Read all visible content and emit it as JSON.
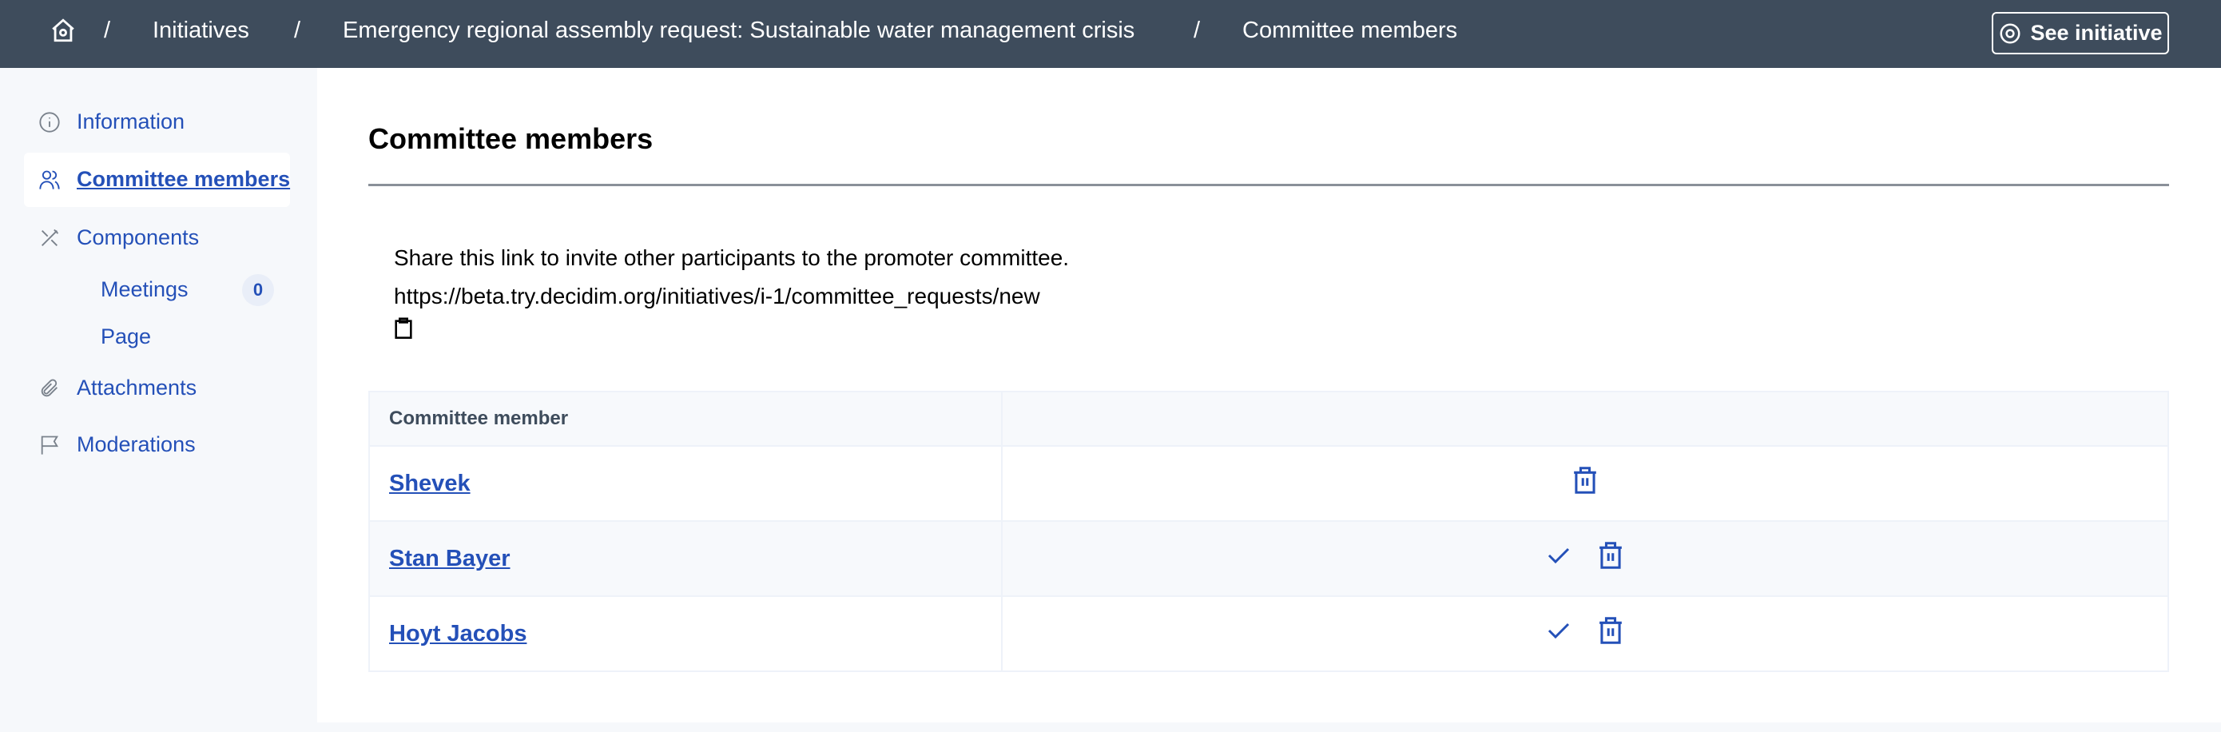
{
  "header": {
    "breadcrumbs": [
      "Initiatives",
      "Emergency regional assembly request: Sustainable water management crisis",
      "Committee members"
    ],
    "separator": "/",
    "see_initiative": "See initiative"
  },
  "sidebar": {
    "items": [
      {
        "label": "Information",
        "icon": "info-icon"
      },
      {
        "label": "Committee members",
        "icon": "users-icon",
        "active": true
      },
      {
        "label": "Components",
        "icon": "tools-icon"
      },
      {
        "label": "Attachments",
        "icon": "paperclip-icon"
      },
      {
        "label": "Moderations",
        "icon": "flag-icon"
      }
    ],
    "components": [
      {
        "label": "Meetings",
        "badge": "0"
      },
      {
        "label": "Page"
      }
    ]
  },
  "main": {
    "title": "Committee members",
    "share_text": "Share this link to invite other participants to the promoter committee.",
    "share_url": "https://beta.try.decidim.org/initiatives/i-1/committee_requests/new",
    "table": {
      "header": "Committee member",
      "rows": [
        {
          "name": "Shevek",
          "approve": false
        },
        {
          "name": "Stan Bayer",
          "approve": true
        },
        {
          "name": "Hoyt Jacobs",
          "approve": true
        }
      ]
    }
  },
  "colors": {
    "header_bg": "#3e4c5c",
    "link": "#2450b8"
  }
}
